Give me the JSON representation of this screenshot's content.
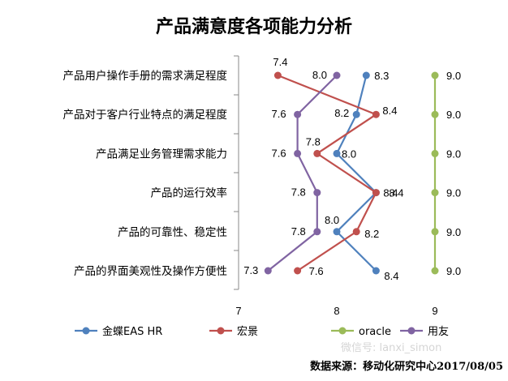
{
  "chart_data": {
    "type": "line",
    "title": "产品满意度各项能力分析",
    "categories": [
      "产品用户操作手册的需求满足程度",
      "产品对于客户行业特点的满足程度",
      "产品满足业务管理需求能力",
      "产品的运行效率",
      "产品的可靠性、稳定性",
      "产品的界面美观性及操作方便性"
    ],
    "xlim": [
      7,
      9
    ],
    "xticks": [
      "7",
      "8",
      "9"
    ],
    "grid": false,
    "legend_position": "bottom",
    "series": [
      {
        "name": "金蝶EAS HR",
        "color": "#4f81bd",
        "values": [
          8.3,
          8.2,
          8.0,
          8.4,
          8.0,
          8.4
        ],
        "labels": [
          "8.3",
          "8.2",
          "8.0",
          "8.4",
          "8.0",
          "8.4"
        ]
      },
      {
        "name": "宏景",
        "color": "#c0504d",
        "values": [
          7.4,
          8.4,
          7.8,
          8.4,
          8.2,
          7.6
        ],
        "labels": [
          "7.4",
          "8.4",
          "7.8",
          "8.4",
          "8.2",
          "7.6"
        ]
      },
      {
        "name": "oracle",
        "color": "#9bbb59",
        "values": [
          9.0,
          9.0,
          9.0,
          9.0,
          9.0,
          9.0
        ],
        "labels": [
          "9.0",
          "9.0",
          "9.0",
          "9.0",
          "9.0",
          "9.0"
        ]
      },
      {
        "name": "用友",
        "color": "#8064a2",
        "values": [
          8.0,
          7.6,
          7.6,
          7.8,
          7.8,
          7.3
        ],
        "labels": [
          "8.0",
          "7.6",
          "7.6",
          "7.8",
          "7.8",
          "7.3"
        ]
      }
    ]
  },
  "source_text": "数据来源：移动化研究中心2017/08/05",
  "watermark_text": "微信号: lanxi_simon"
}
